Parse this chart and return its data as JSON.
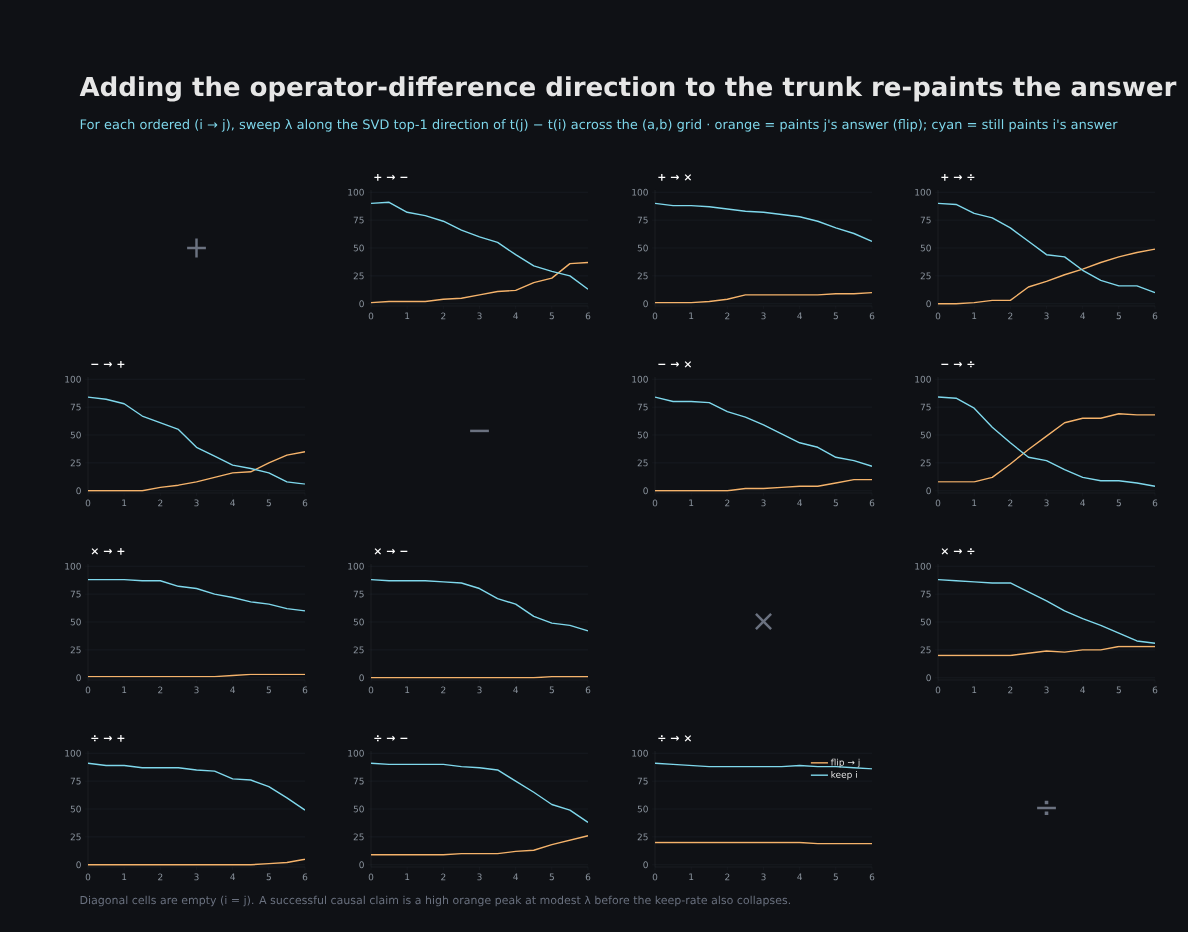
{
  "chart_data": [
    {
      "type": "other",
      "title": "Adding the operator-difference direction to the trunk re-paints the answer",
      "subtitle": "For each ordered (i → j), sweep λ along the SVD top-1 direction of t(j) − t(i) across the (a,b) grid · orange = paints j's answer (flip); cyan = still paints i's answer",
      "annotations": [
        "Diagonal cells are empty (i = j). A successful causal claim is a high orange peak at modest λ before the keep-rate also collapses."
      ]
    },
    {
      "type": "other",
      "title": "+"
    },
    {
      "type": "line",
      "title": "+ → −",
      "x": [
        0,
        0.5,
        1,
        1.5,
        2,
        2.5,
        3,
        3.5,
        4,
        4.5,
        5,
        5.5,
        6
      ],
      "xlim": [
        0,
        6
      ],
      "xticks": [
        0,
        1,
        2,
        3,
        4,
        5,
        6
      ],
      "ylim": [
        -2,
        102
      ],
      "yticks": [
        0,
        25,
        50,
        75,
        100
      ],
      "grid": "y",
      "series": [
        {
          "color": "#f5b36b",
          "values": [
            1,
            2,
            2,
            2,
            4,
            5,
            8,
            11,
            12,
            19,
            23,
            36,
            37
          ]
        },
        {
          "color": "#7fd8ec",
          "values": [
            90,
            91,
            82,
            79,
            74,
            66,
            60,
            55,
            44,
            34,
            29,
            25,
            13
          ]
        }
      ]
    },
    {
      "type": "line",
      "title": "+ → ×",
      "x": [
        0,
        0.5,
        1,
        1.5,
        2,
        2.5,
        3,
        3.5,
        4,
        4.5,
        5,
        5.5,
        6
      ],
      "xlim": [
        0,
        6
      ],
      "xticks": [
        0,
        1,
        2,
        3,
        4,
        5,
        6
      ],
      "ylim": [
        -2,
        102
      ],
      "yticks": [
        0,
        25,
        50,
        75,
        100
      ],
      "grid": "y",
      "series": [
        {
          "color": "#f5b36b",
          "values": [
            1,
            1,
            1,
            2,
            4,
            8,
            8,
            8,
            8,
            8,
            9,
            9,
            10
          ]
        },
        {
          "color": "#7fd8ec",
          "values": [
            90,
            88,
            88,
            87,
            85,
            83,
            82,
            80,
            78,
            74,
            68,
            63,
            56
          ]
        }
      ]
    },
    {
      "type": "line",
      "title": "+ → ÷",
      "x": [
        0,
        0.5,
        1,
        1.5,
        2,
        2.5,
        3,
        3.5,
        4,
        4.5,
        5,
        5.5,
        6
      ],
      "xlim": [
        0,
        6
      ],
      "xticks": [
        0,
        1,
        2,
        3,
        4,
        5,
        6
      ],
      "ylim": [
        -2,
        102
      ],
      "yticks": [
        0,
        25,
        50,
        75,
        100
      ],
      "grid": "y",
      "series": [
        {
          "color": "#f5b36b",
          "values": [
            0,
            0,
            1,
            3,
            3,
            15,
            20,
            26,
            31,
            37,
            42,
            46,
            49
          ]
        },
        {
          "color": "#7fd8ec",
          "values": [
            90,
            89,
            81,
            77,
            68,
            56,
            44,
            42,
            30,
            21,
            16,
            16,
            10
          ]
        }
      ]
    },
    {
      "type": "line",
      "title": "− → +",
      "x": [
        0,
        0.5,
        1,
        1.5,
        2,
        2.5,
        3,
        3.5,
        4,
        4.5,
        5,
        5.5,
        6
      ],
      "xlim": [
        0,
        6
      ],
      "xticks": [
        0,
        1,
        2,
        3,
        4,
        5,
        6
      ],
      "ylim": [
        -2,
        102
      ],
      "yticks": [
        0,
        25,
        50,
        75,
        100
      ],
      "grid": "y",
      "series": [
        {
          "color": "#f5b36b",
          "values": [
            0,
            0,
            0,
            0,
            3,
            5,
            8,
            12,
            16,
            17,
            25,
            32,
            35
          ]
        },
        {
          "color": "#7fd8ec",
          "values": [
            84,
            82,
            78,
            67,
            61,
            55,
            39,
            31,
            23,
            20,
            16,
            8,
            6
          ]
        }
      ]
    },
    {
      "type": "other",
      "title": "−"
    },
    {
      "type": "line",
      "title": "− → ×",
      "x": [
        0,
        0.5,
        1,
        1.5,
        2,
        2.5,
        3,
        3.5,
        4,
        4.5,
        5,
        5.5,
        6
      ],
      "xlim": [
        0,
        6
      ],
      "xticks": [
        0,
        1,
        2,
        3,
        4,
        5,
        6
      ],
      "ylim": [
        -2,
        102
      ],
      "yticks": [
        0,
        25,
        50,
        75,
        100
      ],
      "grid": "y",
      "series": [
        {
          "color": "#f5b36b",
          "values": [
            0,
            0,
            0,
            0,
            0,
            2,
            2,
            3,
            4,
            4,
            7,
            10,
            10
          ]
        },
        {
          "color": "#7fd8ec",
          "values": [
            84,
            80,
            80,
            79,
            71,
            66,
            59,
            51,
            43,
            39,
            30,
            27,
            22
          ]
        }
      ]
    },
    {
      "type": "line",
      "title": "− → ÷",
      "x": [
        0,
        0.5,
        1,
        1.5,
        2,
        2.5,
        3,
        3.5,
        4,
        4.5,
        5,
        5.5,
        6
      ],
      "xlim": [
        0,
        6
      ],
      "xticks": [
        0,
        1,
        2,
        3,
        4,
        5,
        6
      ],
      "ylim": [
        -2,
        102
      ],
      "yticks": [
        0,
        25,
        50,
        75,
        100
      ],
      "grid": "y",
      "series": [
        {
          "color": "#f5b36b",
          "values": [
            8,
            8,
            8,
            12,
            24,
            37,
            49,
            61,
            65,
            65,
            69,
            68,
            68
          ]
        },
        {
          "color": "#7fd8ec",
          "values": [
            84,
            83,
            74,
            57,
            43,
            30,
            27,
            19,
            12,
            9,
            9,
            7,
            4
          ]
        }
      ]
    },
    {
      "type": "line",
      "title": "× → +",
      "x": [
        0,
        0.5,
        1,
        1.5,
        2,
        2.5,
        3,
        3.5,
        4,
        4.5,
        5,
        5.5,
        6
      ],
      "xlim": [
        0,
        6
      ],
      "xticks": [
        0,
        1,
        2,
        3,
        4,
        5,
        6
      ],
      "ylim": [
        -2,
        102
      ],
      "yticks": [
        0,
        25,
        50,
        75,
        100
      ],
      "grid": "y",
      "series": [
        {
          "color": "#f5b36b",
          "values": [
            1,
            1,
            1,
            1,
            1,
            1,
            1,
            1,
            2,
            3,
            3,
            3,
            3
          ]
        },
        {
          "color": "#7fd8ec",
          "values": [
            88,
            88,
            88,
            87,
            87,
            82,
            80,
            75,
            72,
            68,
            66,
            62,
            60
          ]
        }
      ]
    },
    {
      "type": "line",
      "title": "× → −",
      "x": [
        0,
        0.5,
        1,
        1.5,
        2,
        2.5,
        3,
        3.5,
        4,
        4.5,
        5,
        5.5,
        6
      ],
      "xlim": [
        0,
        6
      ],
      "xticks": [
        0,
        1,
        2,
        3,
        4,
        5,
        6
      ],
      "ylim": [
        -2,
        102
      ],
      "yticks": [
        0,
        25,
        50,
        75,
        100
      ],
      "grid": "y",
      "series": [
        {
          "color": "#f5b36b",
          "values": [
            0,
            0,
            0,
            0,
            0,
            0,
            0,
            0,
            0,
            0,
            1,
            1,
            1
          ]
        },
        {
          "color": "#7fd8ec",
          "values": [
            88,
            87,
            87,
            87,
            86,
            85,
            80,
            71,
            66,
            55,
            49,
            47,
            42
          ]
        }
      ]
    },
    {
      "type": "other",
      "title": "×"
    },
    {
      "type": "line",
      "title": "× → ÷",
      "x": [
        0,
        0.5,
        1,
        1.5,
        2,
        2.5,
        3,
        3.5,
        4,
        4.5,
        5,
        5.5,
        6
      ],
      "xlim": [
        0,
        6
      ],
      "xticks": [
        0,
        1,
        2,
        3,
        4,
        5,
        6
      ],
      "ylim": [
        -2,
        102
      ],
      "yticks": [
        0,
        25,
        50,
        75,
        100
      ],
      "grid": "y",
      "series": [
        {
          "color": "#f5b36b",
          "values": [
            20,
            20,
            20,
            20,
            20,
            22,
            24,
            23,
            25,
            25,
            28,
            28,
            28
          ]
        },
        {
          "color": "#7fd8ec",
          "values": [
            88,
            87,
            86,
            85,
            85,
            77,
            69,
            60,
            53,
            47,
            40,
            33,
            31
          ]
        }
      ]
    },
    {
      "type": "line",
      "title": "÷ → +",
      "x": [
        0,
        0.5,
        1,
        1.5,
        2,
        2.5,
        3,
        3.5,
        4,
        4.5,
        5,
        5.5,
        6
      ],
      "xlim": [
        0,
        6
      ],
      "xticks": [
        0,
        1,
        2,
        3,
        4,
        5,
        6
      ],
      "ylim": [
        -2,
        102
      ],
      "yticks": [
        0,
        25,
        50,
        75,
        100
      ],
      "grid": "y",
      "series": [
        {
          "color": "#f5b36b",
          "values": [
            0,
            0,
            0,
            0,
            0,
            0,
            0,
            0,
            0,
            0,
            1,
            2,
            5
          ]
        },
        {
          "color": "#7fd8ec",
          "values": [
            91,
            89,
            89,
            87,
            87,
            87,
            85,
            84,
            77,
            76,
            70,
            60,
            49
          ]
        }
      ]
    },
    {
      "type": "line",
      "title": "÷ → −",
      "x": [
        0,
        0.5,
        1,
        1.5,
        2,
        2.5,
        3,
        3.5,
        4,
        4.5,
        5,
        5.5,
        6
      ],
      "xlim": [
        0,
        6
      ],
      "xticks": [
        0,
        1,
        2,
        3,
        4,
        5,
        6
      ],
      "ylim": [
        -2,
        102
      ],
      "yticks": [
        0,
        25,
        50,
        75,
        100
      ],
      "grid": "y",
      "series": [
        {
          "color": "#f5b36b",
          "values": [
            9,
            9,
            9,
            9,
            9,
            10,
            10,
            10,
            12,
            13,
            18,
            22,
            26
          ]
        },
        {
          "color": "#7fd8ec",
          "values": [
            91,
            90,
            90,
            90,
            90,
            88,
            87,
            85,
            75,
            65,
            54,
            49,
            38
          ]
        }
      ]
    },
    {
      "type": "line",
      "title": "÷ → ×",
      "x": [
        0,
        0.5,
        1,
        1.5,
        2,
        2.5,
        3,
        3.5,
        4,
        4.5,
        5,
        5.5,
        6
      ],
      "xlim": [
        0,
        6
      ],
      "xticks": [
        0,
        1,
        2,
        3,
        4,
        5,
        6
      ],
      "ylim": [
        -2,
        102
      ],
      "yticks": [
        0,
        25,
        50,
        75,
        100
      ],
      "grid": "y",
      "legend": "top right",
      "series": [
        {
          "name": "flip → j",
          "color": "#f5b36b",
          "values": [
            20,
            20,
            20,
            20,
            20,
            20,
            20,
            20,
            20,
            19,
            19,
            19,
            19
          ]
        },
        {
          "name": "keep i",
          "color": "#7fd8ec",
          "values": [
            91,
            90,
            89,
            88,
            88,
            88,
            88,
            88,
            89,
            88,
            88,
            87,
            86
          ]
        }
      ]
    },
    {
      "type": "other",
      "title": "÷"
    }
  ]
}
